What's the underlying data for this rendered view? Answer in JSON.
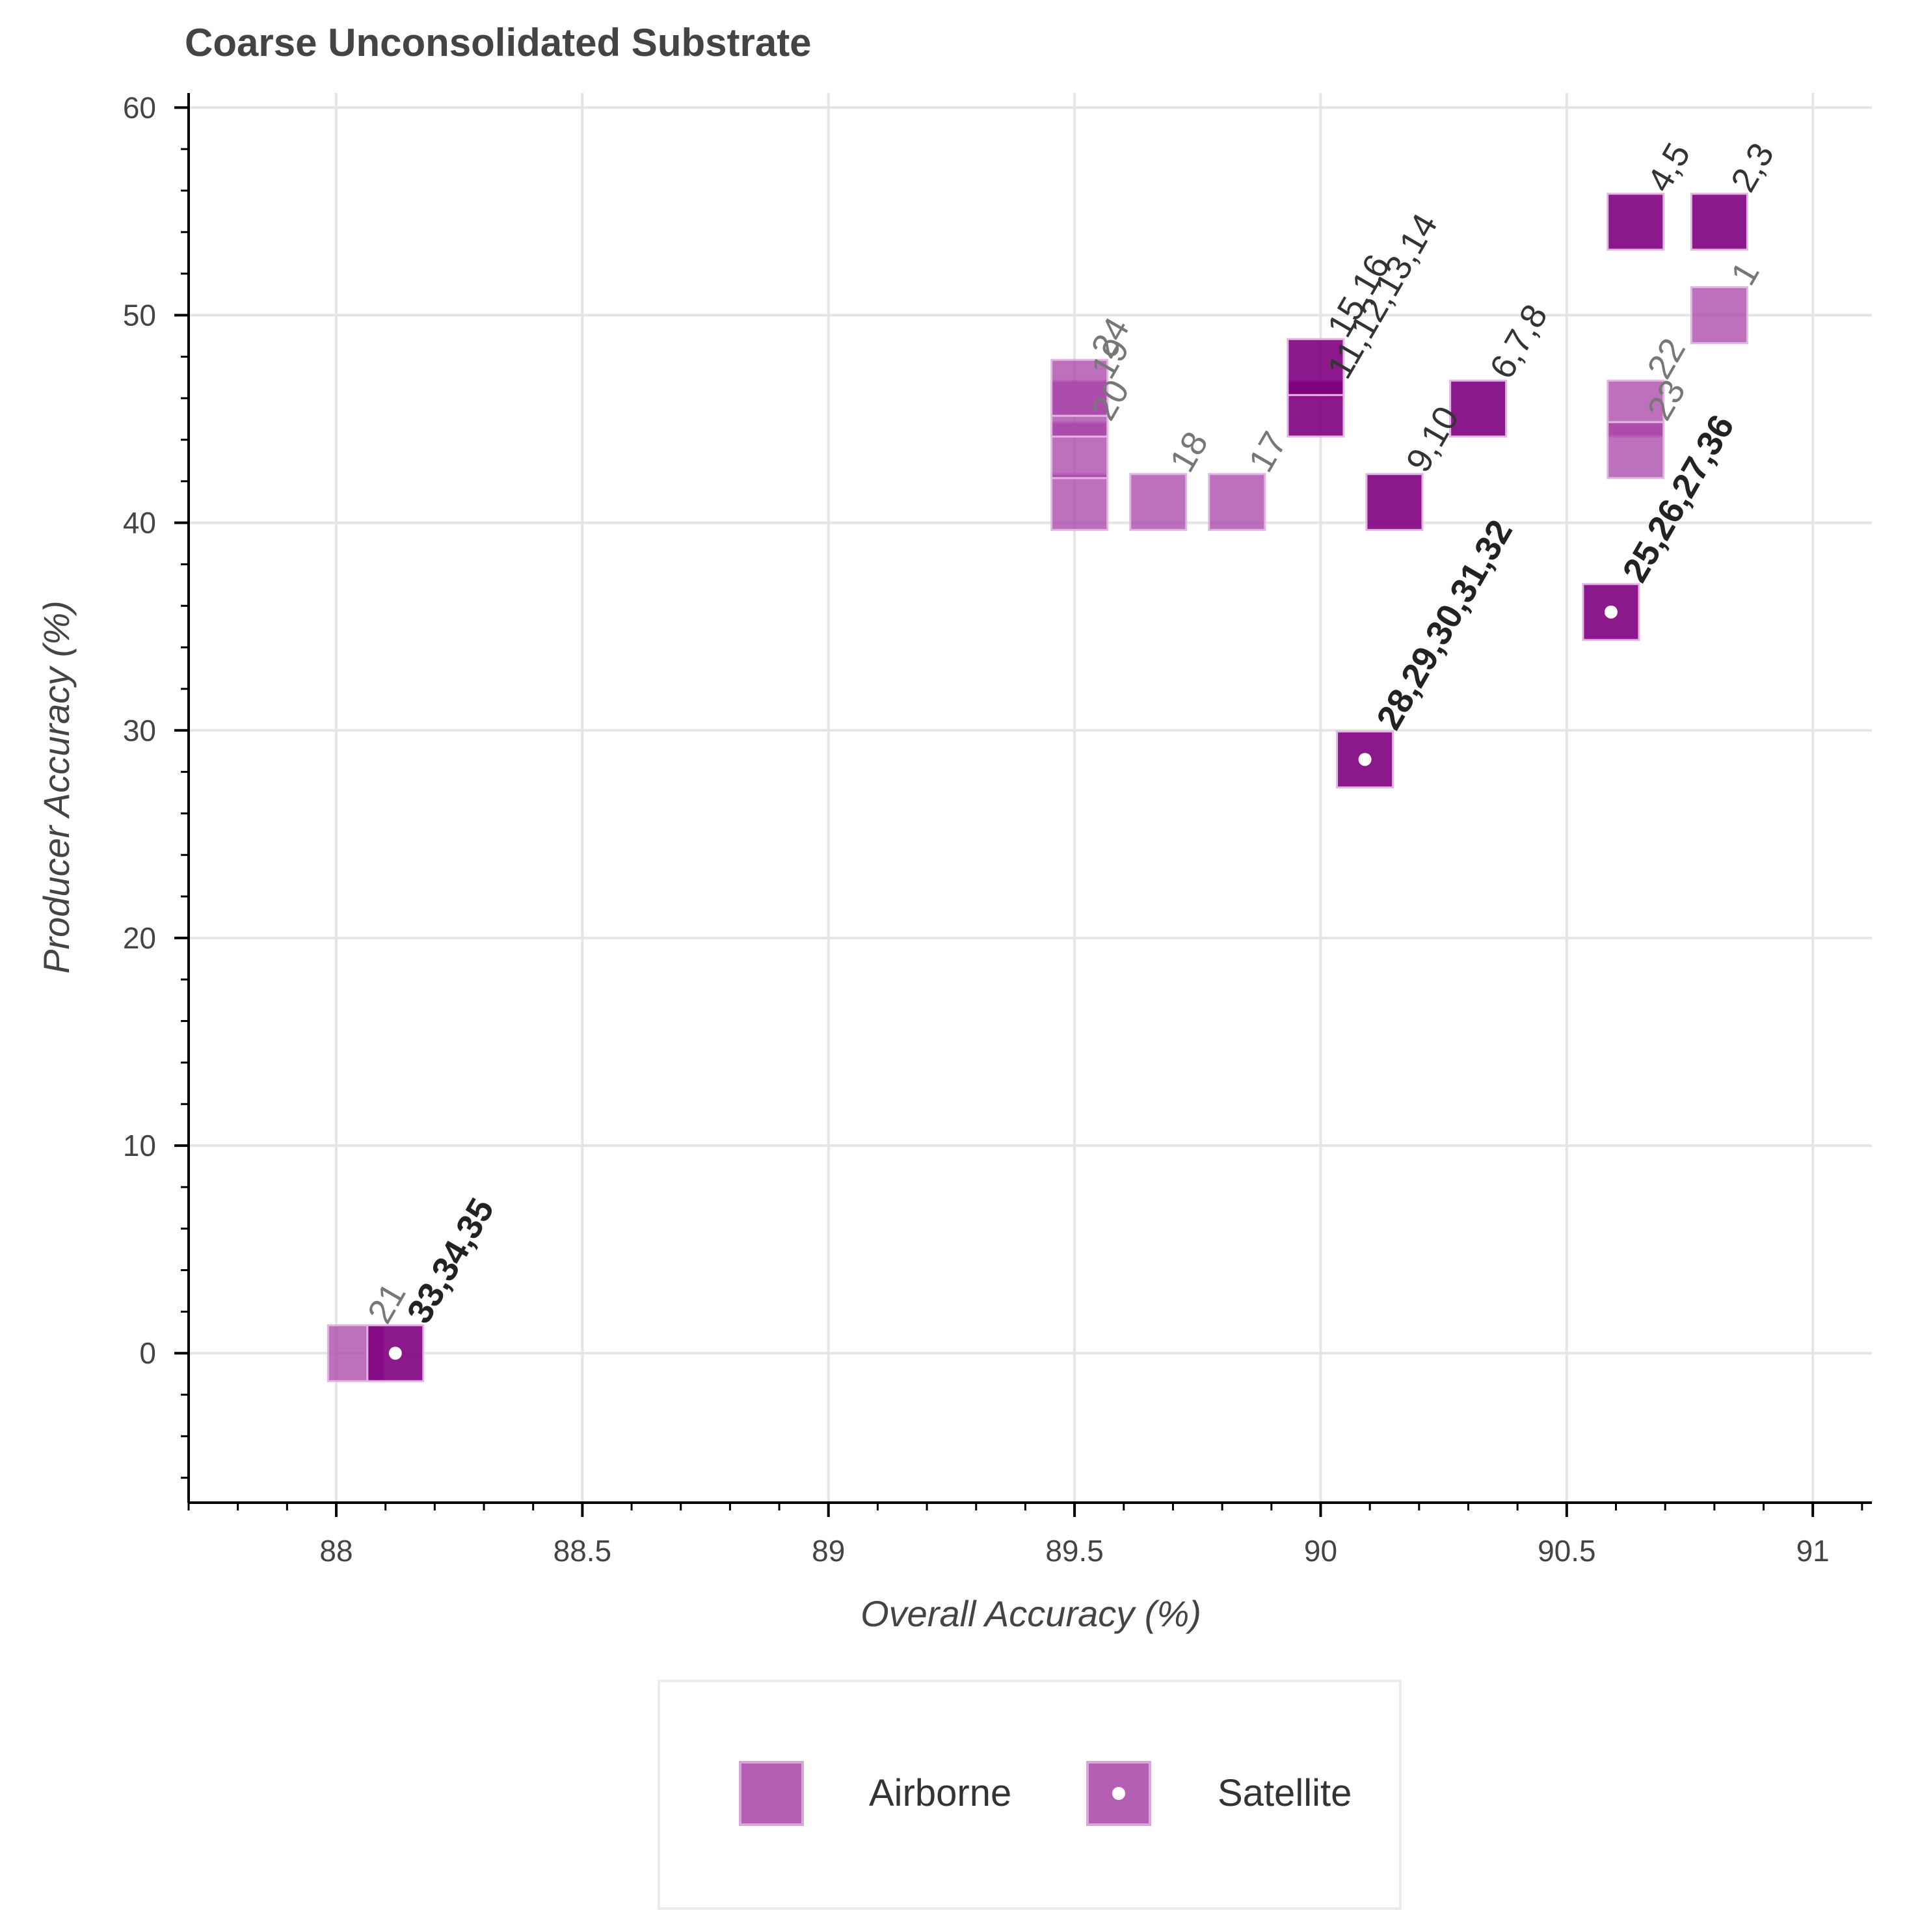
{
  "chart_data": {
    "type": "scatter",
    "title": "Coarse Unconsolidated Substrate",
    "xlabel": "Overall Accuracy (%)",
    "ylabel": "Producer Accuracy (%)",
    "xlim": [
      87.7,
      91.12
    ],
    "ylim": [
      -7.2,
      60.7
    ],
    "xticks": [
      88,
      88.5,
      89,
      89.5,
      90,
      90.5,
      91
    ],
    "xtick_labels": [
      "88",
      "88.5",
      "89",
      "89.5",
      "90",
      "90.5",
      "91"
    ],
    "yticks": [
      0,
      10,
      20,
      30,
      40,
      50,
      60
    ],
    "ytick_labels": [
      "0",
      "10",
      "20",
      "30",
      "40",
      "50",
      "60"
    ],
    "grid": true,
    "legend": {
      "position": "bottom-center",
      "entries": [
        {
          "label": "Airborne",
          "marker": "square"
        },
        {
          "label": "Satellite",
          "marker": "square-dot"
        }
      ]
    },
    "colors": {
      "light": "#a742a7",
      "dark": "#800080",
      "satellite_dot": "#ffffff"
    },
    "series": [
      {
        "name": "Airborne",
        "points": [
          {
            "x": 90.81,
            "y": 50.0,
            "label": "1",
            "shade": "light"
          },
          {
            "x": 90.81,
            "y": 54.5,
            "label": "2,3",
            "shade": "dark"
          },
          {
            "x": 90.64,
            "y": 54.5,
            "label": "4,5",
            "shade": "dark"
          },
          {
            "x": 90.32,
            "y": 45.5,
            "label": "6,7,8",
            "shade": "dark"
          },
          {
            "x": 90.15,
            "y": 41.0,
            "label": "9,10",
            "shade": "dark"
          },
          {
            "x": 89.99,
            "y": 45.5,
            "label": "11,12,13,14",
            "shade": "dark"
          },
          {
            "x": 89.99,
            "y": 47.5,
            "label": "15,16",
            "shade": "dark"
          },
          {
            "x": 89.83,
            "y": 41.0,
            "label": "17",
            "shade": "light"
          },
          {
            "x": 89.67,
            "y": 41.0,
            "label": "18",
            "shade": "light"
          },
          {
            "x": 89.51,
            "y": 41.0,
            "label": "",
            "shade": "light"
          },
          {
            "x": 89.51,
            "y": 43.5,
            "label": "20",
            "shade": "light"
          },
          {
            "x": 89.51,
            "y": 45.5,
            "label": "19",
            "shade": "light"
          },
          {
            "x": 89.51,
            "y": 46.5,
            "label": "24",
            "shade": "light"
          },
          {
            "x": 88.04,
            "y": 0.0,
            "label": "21",
            "shade": "light"
          },
          {
            "x": 90.64,
            "y": 45.5,
            "label": "22",
            "shade": "light"
          },
          {
            "x": 90.64,
            "y": 43.5,
            "label": "23",
            "shade": "light"
          }
        ]
      },
      {
        "name": "Satellite",
        "points": [
          {
            "x": 90.59,
            "y": 35.7,
            "label": "25,26,27,36",
            "shade": "dark"
          },
          {
            "x": 90.09,
            "y": 28.6,
            "label": "28,29,30,31,32",
            "shade": "dark"
          },
          {
            "x": 88.12,
            "y": 0.0,
            "label": "33,34,35",
            "shade": "dark"
          }
        ]
      }
    ]
  }
}
